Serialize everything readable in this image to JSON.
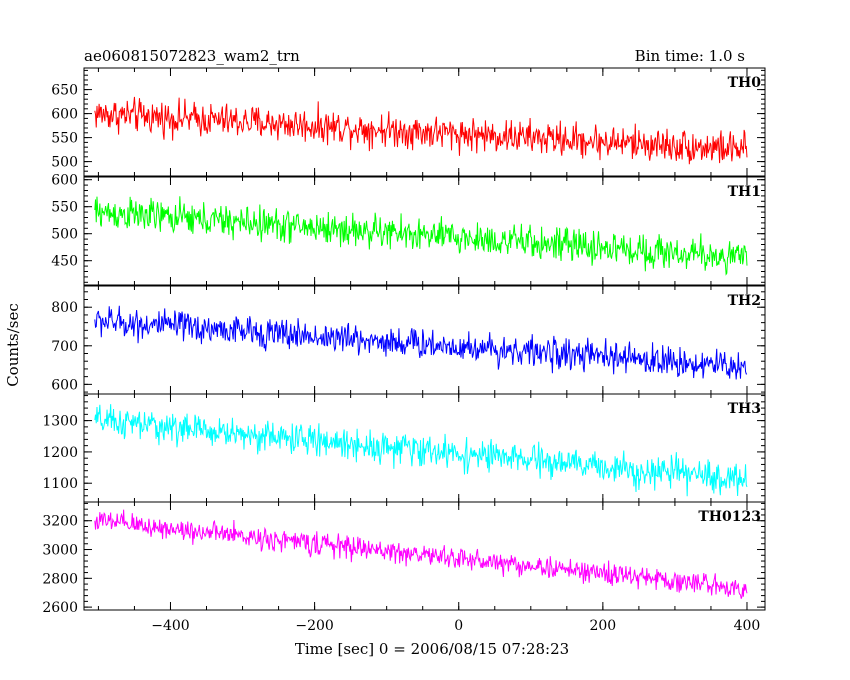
{
  "chart_data": {
    "type": "line",
    "title_left": "ae060815072823_wam2_trn",
    "title_right": "Bin time: 1.0 s",
    "xlabel": "Time [sec] 0 = 2006/08/15 07:28:23",
    "ylabel": "Counts/sec",
    "xlim": [
      -520,
      425
    ],
    "x_ticks": [
      -400,
      -200,
      0,
      200,
      400
    ],
    "x_tick_labels": [
      "−400",
      "−200",
      "0",
      "200",
      "400"
    ],
    "x_range_data": [
      -505,
      400
    ],
    "panels": [
      {
        "name": "TH0",
        "color": "#ff0000",
        "ylim": [
          470,
          695
        ],
        "yticks": [
          500,
          550,
          600,
          650
        ],
        "ytick_labels": [
          "500",
          "550",
          "600",
          "650"
        ],
        "trend_start": 600,
        "trend_end": 525,
        "noise": 25
      },
      {
        "name": "TH1",
        "color": "#00ff00",
        "ylim": [
          405,
          605
        ],
        "yticks": [
          450,
          500,
          550,
          600
        ],
        "ytick_labels": [
          "450",
          "500",
          "550",
          "600"
        ],
        "trend_start": 540,
        "trend_end": 455,
        "noise": 22
      },
      {
        "name": "TH2",
        "color": "#0000ff",
        "ylim": [
          575,
          855
        ],
        "yticks": [
          600,
          700,
          800
        ],
        "ytick_labels": [
          "600",
          "700",
          "800"
        ],
        "trend_start": 765,
        "trend_end": 645,
        "noise": 28
      },
      {
        "name": "TH3",
        "color": "#00ffff",
        "ylim": [
          1040,
          1385
        ],
        "yticks": [
          1100,
          1200,
          1300
        ],
        "ytick_labels": [
          "1100",
          "1200",
          "1300"
        ],
        "trend_start": 1300,
        "trend_end": 1110,
        "noise": 35
      },
      {
        "name": "TH0123",
        "color": "#ff00ff",
        "ylim": [
          2580,
          3330
        ],
        "yticks": [
          2600,
          2800,
          3000,
          3200
        ],
        "ytick_labels": [
          "2600",
          "2800",
          "3000",
          "3200"
        ],
        "trend_start": 3200,
        "trend_end": 2730,
        "noise": 55
      }
    ]
  }
}
